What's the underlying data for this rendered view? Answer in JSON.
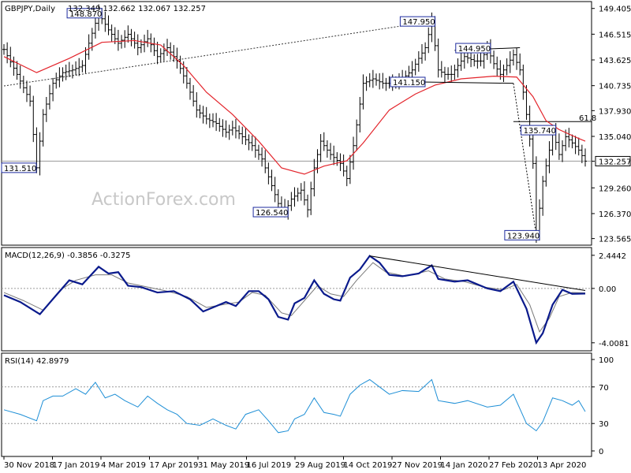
{
  "chart_data": {
    "type": "ohlc",
    "symbol_header": "GBPJPY,Daily",
    "ohlc_header": "132.349 132.662 132.067 132.257",
    "watermark": "ActionForex.com",
    "colors": {
      "price": "#000000",
      "ma": "#e3242b",
      "macd": "#0a1a8c",
      "signal": "#7a7a7a",
      "rsi": "#1e8fd6",
      "grid": "#9a9a9a"
    },
    "price_axis": {
      "ticks": [
        "149.405",
        "146.515",
        "143.625",
        "140.735",
        "137.930",
        "135.040",
        "132.257",
        "129.260",
        "126.370",
        "123.565"
      ],
      "ylim": [
        123.0,
        150.0
      ]
    },
    "x_axis": {
      "labels": [
        "30 Nov 2018",
        "17 Jan 2019",
        "4 Mar 2019",
        "17 Apr 2019",
        "31 May 2019",
        "16 Jul 2019",
        "29 Aug 2019",
        "14 Oct 2019",
        "27 Nov 2019",
        "14 Jan 2020",
        "27 Feb 2020",
        "13 Apr 2020"
      ]
    },
    "annotations": [
      {
        "text": "148.870",
        "x": 29,
        "y": 148.87
      },
      {
        "text": "147.950",
        "x": 131,
        "y": 147.95
      },
      {
        "text": "144.950",
        "x": 148,
        "y": 144.95
      },
      {
        "text": "141.150",
        "x": 128,
        "y": 141.15
      },
      {
        "text": "135.740",
        "x": 168,
        "y": 135.74
      },
      {
        "text": "131.510",
        "x": 0,
        "y": 131.51
      },
      {
        "text": "126.540",
        "x": 86,
        "y": 126.54
      },
      {
        "text": "123.940",
        "x": 163,
        "y": 123.94
      }
    ],
    "fib_label": "61.8",
    "fib_level": 136.7,
    "last_price": "132.257",
    "close_points": [
      [
        0,
        144.8
      ],
      [
        4,
        142.0
      ],
      [
        8,
        139.0
      ],
      [
        10,
        131.51
      ],
      [
        12,
        137.5
      ],
      [
        15,
        141.0
      ],
      [
        18,
        142.2
      ],
      [
        21,
        142.5
      ],
      [
        24,
        143.0
      ],
      [
        26,
        145.5
      ],
      [
        29,
        148.87
      ],
      [
        32,
        147.0
      ],
      [
        35,
        145.5
      ],
      [
        38,
        146.5
      ],
      [
        41,
        145.0
      ],
      [
        44,
        146.0
      ],
      [
        47,
        144.0
      ],
      [
        50,
        145.0
      ],
      [
        53,
        143.5
      ],
      [
        56,
        141.0
      ],
      [
        59,
        138.0
      ],
      [
        62,
        137.0
      ],
      [
        65,
        136.5
      ],
      [
        68,
        135.5
      ],
      [
        70,
        136.0
      ],
      [
        73,
        135.0
      ],
      [
        76,
        134.0
      ],
      [
        79,
        132.5
      ],
      [
        82,
        129.5
      ],
      [
        84,
        127.5
      ],
      [
        86,
        126.54
      ],
      [
        88,
        128.0
      ],
      [
        91,
        129.0
      ],
      [
        93,
        126.8
      ],
      [
        95,
        131.5
      ],
      [
        97,
        134.5
      ],
      [
        100,
        133.0
      ],
      [
        103,
        132.0
      ],
      [
        105,
        130.3
      ],
      [
        107,
        134.0
      ],
      [
        110,
        141.0
      ],
      [
        113,
        141.5
      ],
      [
        116,
        141.0
      ],
      [
        119,
        141.0
      ],
      [
        122,
        141.5
      ],
      [
        125,
        142.5
      ],
      [
        127,
        143.8
      ],
      [
        129,
        145.0
      ],
      [
        131,
        147.95
      ],
      [
        133,
        142.5
      ],
      [
        135,
        142.0
      ],
      [
        137,
        142.0
      ],
      [
        139,
        143.0
      ],
      [
        141,
        144.0
      ],
      [
        144,
        143.5
      ],
      [
        146,
        143.5
      ],
      [
        148,
        144.95
      ],
      [
        150,
        143.2
      ],
      [
        152,
        142.0
      ],
      [
        154,
        143.0
      ],
      [
        156,
        144.2
      ],
      [
        158,
        142.5
      ],
      [
        160,
        137.5
      ],
      [
        162,
        132.0
      ],
      [
        163,
        123.94
      ],
      [
        165,
        130.0
      ],
      [
        167,
        133.5
      ],
      [
        168,
        135.74
      ],
      [
        170,
        133.0
      ],
      [
        172,
        135.0
      ],
      [
        174,
        134.3
      ],
      [
        176,
        133.5
      ],
      [
        178,
        132.257
      ]
    ],
    "ma_points": [
      [
        0,
        144.0
      ],
      [
        10,
        142.2
      ],
      [
        20,
        143.8
      ],
      [
        30,
        145.6
      ],
      [
        40,
        145.8
      ],
      [
        48,
        145.3
      ],
      [
        55,
        143.0
      ],
      [
        62,
        140.0
      ],
      [
        70,
        137.5
      ],
      [
        78,
        134.5
      ],
      [
        85,
        131.5
      ],
      [
        92,
        130.8
      ],
      [
        98,
        131.7
      ],
      [
        105,
        132.3
      ],
      [
        110,
        134.3
      ],
      [
        118,
        138.0
      ],
      [
        126,
        139.8
      ],
      [
        132,
        140.8
      ],
      [
        140,
        141.5
      ],
      [
        150,
        141.8
      ],
      [
        157,
        141.7
      ],
      [
        162,
        139.5
      ],
      [
        166,
        136.8
      ],
      [
        170,
        135.8
      ],
      [
        176,
        134.8
      ],
      [
        178,
        134.5
      ]
    ],
    "trendline_long": {
      "from": [
        0,
        140.7
      ],
      "to": [
        131,
        147.95
      ]
    },
    "channel_upper": {
      "from": [
        138,
        144.7
      ],
      "to": [
        158,
        145.0
      ]
    },
    "channel_lower": {
      "from": [
        128,
        141.15
      ],
      "to": [
        156,
        141.0
      ]
    },
    "drop_line": {
      "from": [
        156,
        141.0
      ],
      "to": [
        163,
        123.94
      ]
    },
    "macd": {
      "header": "MACD(12,26,9) -0.3856 -0.3275",
      "ticks": [
        "2.4442",
        "0.00",
        "-4.0081"
      ],
      "ylim": [
        -4.6,
        2.9
      ],
      "macd_points": [
        [
          0,
          -0.5
        ],
        [
          5,
          -1.0
        ],
        [
          11,
          -1.9
        ],
        [
          16,
          -0.5
        ],
        [
          20,
          0.6
        ],
        [
          24,
          0.3
        ],
        [
          29,
          1.6
        ],
        [
          32,
          1.1
        ],
        [
          35,
          1.2
        ],
        [
          38,
          0.2
        ],
        [
          42,
          0.1
        ],
        [
          47,
          -0.3
        ],
        [
          52,
          -0.2
        ],
        [
          57,
          -0.8
        ],
        [
          61,
          -1.7
        ],
        [
          64,
          -1.4
        ],
        [
          68,
          -1.0
        ],
        [
          71,
          -1.3
        ],
        [
          75,
          -0.2
        ],
        [
          78,
          -0.2
        ],
        [
          81,
          -0.8
        ],
        [
          84,
          -2.1
        ],
        [
          87,
          -2.3
        ],
        [
          89,
          -1.1
        ],
        [
          92,
          -0.7
        ],
        [
          95,
          0.6
        ],
        [
          98,
          -0.4
        ],
        [
          101,
          -0.8
        ],
        [
          103,
          -0.9
        ],
        [
          106,
          0.8
        ],
        [
          109,
          1.4
        ],
        [
          112,
          2.4
        ],
        [
          115,
          1.9
        ],
        [
          118,
          1.0
        ],
        [
          122,
          0.9
        ],
        [
          127,
          1.1
        ],
        [
          131,
          1.7
        ],
        [
          133,
          0.7
        ],
        [
          138,
          0.5
        ],
        [
          142,
          0.6
        ],
        [
          148,
          0.0
        ],
        [
          152,
          -0.2
        ],
        [
          156,
          0.5
        ],
        [
          160,
          -1.5
        ],
        [
          163,
          -4.0
        ],
        [
          165,
          -3.3
        ],
        [
          168,
          -1.2
        ],
        [
          171,
          -0.1
        ],
        [
          174,
          -0.4
        ],
        [
          178,
          -0.38
        ]
      ],
      "signal_points": [
        [
          0,
          -0.3
        ],
        [
          6,
          -0.9
        ],
        [
          12,
          -1.6
        ],
        [
          18,
          0.0
        ],
        [
          22,
          0.6
        ],
        [
          28,
          1.0
        ],
        [
          33,
          1.0
        ],
        [
          38,
          0.4
        ],
        [
          44,
          0.1
        ],
        [
          50,
          -0.2
        ],
        [
          56,
          -0.6
        ],
        [
          62,
          -1.4
        ],
        [
          67,
          -1.2
        ],
        [
          72,
          -1.0
        ],
        [
          76,
          -0.3
        ],
        [
          80,
          -0.5
        ],
        [
          85,
          -1.8
        ],
        [
          88,
          -2.0
        ],
        [
          92,
          -0.9
        ],
        [
          96,
          0.2
        ],
        [
          100,
          -0.4
        ],
        [
          104,
          -0.6
        ],
        [
          108,
          0.6
        ],
        [
          113,
          1.9
        ],
        [
          117,
          1.2
        ],
        [
          123,
          0.9
        ],
        [
          130,
          1.3
        ],
        [
          135,
          0.7
        ],
        [
          141,
          0.5
        ],
        [
          147,
          0.1
        ],
        [
          153,
          -0.1
        ],
        [
          157,
          0.3
        ],
        [
          161,
          -1.2
        ],
        [
          164,
          -3.2
        ],
        [
          167,
          -2.2
        ],
        [
          170,
          -0.6
        ],
        [
          174,
          -0.3
        ],
        [
          178,
          -0.33
        ]
      ],
      "trendline": {
        "from": [
          112,
          2.4
        ],
        "to": [
          178,
          -0.15
        ]
      }
    },
    "rsi": {
      "header": "RSI(14) 42.8979",
      "ticks": [
        "100",
        "70",
        "30",
        "0"
      ],
      "levels": [
        70,
        30
      ],
      "ylim": [
        0,
        100
      ],
      "points": [
        [
          0,
          45
        ],
        [
          5,
          40
        ],
        [
          10,
          33
        ],
        [
          12,
          55
        ],
        [
          15,
          60
        ],
        [
          18,
          60
        ],
        [
          22,
          68
        ],
        [
          25,
          62
        ],
        [
          28,
          75
        ],
        [
          31,
          58
        ],
        [
          34,
          62
        ],
        [
          37,
          55
        ],
        [
          41,
          48
        ],
        [
          44,
          60
        ],
        [
          47,
          52
        ],
        [
          50,
          45
        ],
        [
          53,
          40
        ],
        [
          56,
          30
        ],
        [
          60,
          28
        ],
        [
          64,
          35
        ],
        [
          68,
          28
        ],
        [
          71,
          24
        ],
        [
          74,
          40
        ],
        [
          78,
          45
        ],
        [
          81,
          33
        ],
        [
          84,
          20
        ],
        [
          87,
          22
        ],
        [
          89,
          35
        ],
        [
          92,
          40
        ],
        [
          95,
          58
        ],
        [
          98,
          42
        ],
        [
          101,
          40
        ],
        [
          103,
          38
        ],
        [
          106,
          62
        ],
        [
          109,
          72
        ],
        [
          112,
          78
        ],
        [
          115,
          70
        ],
        [
          118,
          62
        ],
        [
          122,
          66
        ],
        [
          127,
          65
        ],
        [
          131,
          78
        ],
        [
          133,
          55
        ],
        [
          138,
          52
        ],
        [
          142,
          55
        ],
        [
          148,
          48
        ],
        [
          152,
          50
        ],
        [
          156,
          62
        ],
        [
          160,
          30
        ],
        [
          163,
          22
        ],
        [
          165,
          32
        ],
        [
          168,
          58
        ],
        [
          171,
          55
        ],
        [
          174,
          50
        ],
        [
          176,
          55
        ],
        [
          178,
          43
        ]
      ]
    }
  }
}
